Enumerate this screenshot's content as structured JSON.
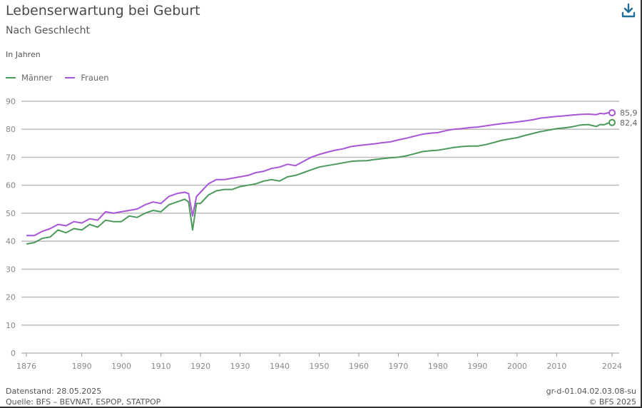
{
  "header": {
    "title": "Lebenserwartung bei Geburt",
    "subtitle": "Nach Geschlecht",
    "unit": "In Jahren",
    "download_icon": "download-icon"
  },
  "legend": [
    {
      "label": "Männer",
      "color": "#4a9a5a"
    },
    {
      "label": "Frauen",
      "color": "#a855d8"
    }
  ],
  "footer": {
    "datenstand": "Datenstand: 28.05.2025",
    "quelle": "Quelle: BFS – BEVNAT, ESPOP, STATPOP",
    "id": "gr-d-01.04.02.03.08-su",
    "copyright": "© BFS 2025"
  },
  "chart_data": {
    "type": "line",
    "title": "Lebenserwartung bei Geburt",
    "subtitle": "Nach Geschlecht",
    "xlabel": "",
    "ylabel": "In Jahren",
    "ylim": [
      0,
      90
    ],
    "yticks": [
      0,
      10,
      20,
      30,
      40,
      50,
      60,
      70,
      80,
      90
    ],
    "xticks": [
      1876,
      1890,
      1900,
      1910,
      1920,
      1930,
      1940,
      1950,
      1960,
      1970,
      1980,
      1990,
      2000,
      2010,
      2024
    ],
    "grid": true,
    "legend_position": "top-left",
    "x": [
      1876,
      1878,
      1880,
      1882,
      1884,
      1886,
      1888,
      1890,
      1892,
      1894,
      1896,
      1898,
      1900,
      1902,
      1904,
      1906,
      1908,
      1910,
      1912,
      1914,
      1916,
      1917,
      1918,
      1919,
      1920,
      1922,
      1924,
      1926,
      1928,
      1930,
      1932,
      1934,
      1936,
      1938,
      1940,
      1942,
      1944,
      1946,
      1948,
      1950,
      1952,
      1954,
      1956,
      1958,
      1960,
      1962,
      1964,
      1966,
      1968,
      1970,
      1972,
      1974,
      1976,
      1978,
      1980,
      1982,
      1984,
      1986,
      1988,
      1990,
      1992,
      1994,
      1996,
      1998,
      2000,
      2002,
      2004,
      2006,
      2008,
      2010,
      2012,
      2014,
      2016,
      2018,
      2020,
      2021,
      2022,
      2023,
      2024
    ],
    "series": [
      {
        "name": "Männer",
        "color": "#4a9a5a",
        "values": [
          39.0,
          39.5,
          41.0,
          41.5,
          44.0,
          43.0,
          44.5,
          44.0,
          46.0,
          45.0,
          47.5,
          47.0,
          47.0,
          49.0,
          48.5,
          50.0,
          51.0,
          50.5,
          53.0,
          54.0,
          55.0,
          54.0,
          44.0,
          53.5,
          53.5,
          56.5,
          58.0,
          58.5,
          58.5,
          59.5,
          60.0,
          60.5,
          61.5,
          62.0,
          61.5,
          63.0,
          63.5,
          64.5,
          65.5,
          66.5,
          67.0,
          67.5,
          68.0,
          68.5,
          68.7,
          68.8,
          69.2,
          69.5,
          69.8,
          70.0,
          70.5,
          71.2,
          72.0,
          72.3,
          72.5,
          73.0,
          73.5,
          73.8,
          74.0,
          74.0,
          74.5,
          75.2,
          76.0,
          76.5,
          77.0,
          77.8,
          78.5,
          79.2,
          79.7,
          80.2,
          80.5,
          80.9,
          81.5,
          81.7,
          81.0,
          81.7,
          81.6,
          82.2,
          82.4
        ]
      },
      {
        "name": "Frauen",
        "color": "#a855d8",
        "values": [
          42.0,
          42.0,
          43.5,
          44.5,
          46.0,
          45.5,
          47.0,
          46.5,
          48.0,
          47.5,
          50.5,
          50.0,
          50.5,
          51.0,
          51.5,
          53.0,
          54.0,
          53.5,
          56.0,
          57.0,
          57.5,
          57.0,
          49.0,
          56.0,
          57.5,
          60.5,
          62.0,
          62.0,
          62.5,
          63.0,
          63.5,
          64.5,
          65.0,
          66.0,
          66.5,
          67.5,
          67.0,
          68.5,
          70.0,
          71.0,
          71.8,
          72.5,
          73.0,
          73.8,
          74.2,
          74.5,
          74.8,
          75.2,
          75.5,
          76.2,
          76.8,
          77.5,
          78.2,
          78.6,
          78.8,
          79.5,
          80.0,
          80.2,
          80.6,
          80.8,
          81.2,
          81.6,
          82.0,
          82.3,
          82.6,
          83.0,
          83.4,
          84.0,
          84.3,
          84.6,
          84.8,
          85.1,
          85.3,
          85.4,
          85.2,
          85.7,
          85.5,
          85.9,
          85.9
        ]
      }
    ],
    "annotations": [
      {
        "series": "Frauen",
        "x": 2024,
        "label": "85,9"
      },
      {
        "series": "Männer",
        "x": 2024,
        "label": "82,4"
      }
    ]
  }
}
